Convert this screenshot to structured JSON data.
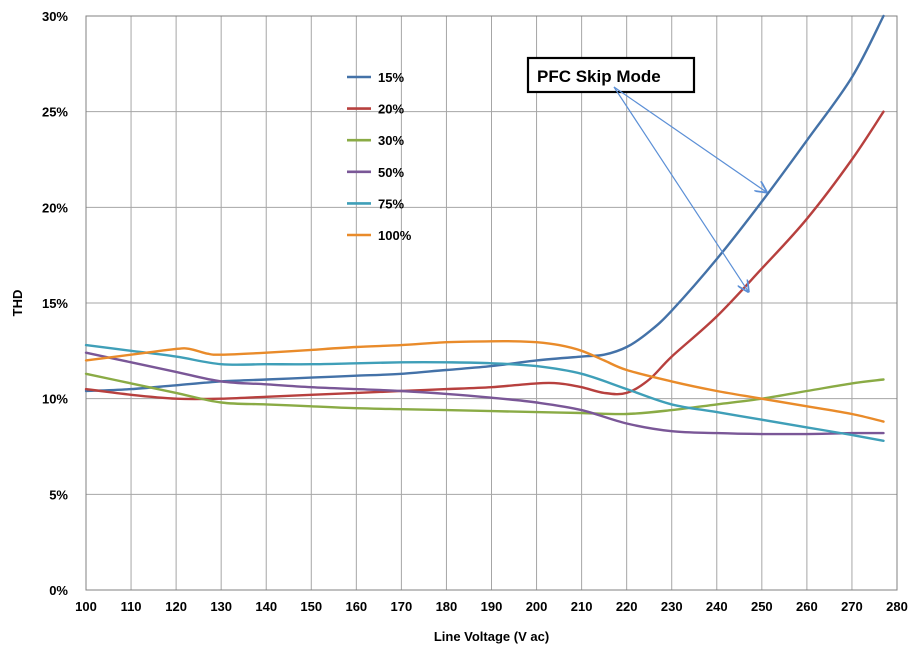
{
  "chart_data": {
    "type": "line",
    "xlabel": "Line Voltage (V ac)",
    "ylabel": "THD",
    "xlim": [
      100,
      280
    ],
    "ylim": [
      0,
      30
    ],
    "x_ticks": [
      100,
      110,
      120,
      130,
      140,
      150,
      160,
      170,
      180,
      190,
      200,
      210,
      220,
      230,
      240,
      250,
      260,
      270,
      280
    ],
    "y_ticks": [
      0,
      5,
      10,
      15,
      20,
      25,
      30
    ],
    "y_tick_labels": [
      "0%",
      "5%",
      "10%",
      "15%",
      "20%",
      "25%",
      "30%"
    ],
    "grid": true,
    "legend_position": "upper-center",
    "series": [
      {
        "name": "15%",
        "color": "#4472a8",
        "x": [
          100,
          110,
          120,
          130,
          140,
          150,
          160,
          170,
          180,
          190,
          200,
          210,
          215,
          220,
          225,
          230,
          240,
          250,
          260,
          270,
          277
        ],
        "y": [
          10.4,
          10.5,
          10.7,
          10.9,
          11.0,
          11.1,
          11.2,
          11.3,
          11.5,
          11.7,
          12.0,
          12.2,
          12.3,
          12.7,
          13.5,
          14.6,
          17.3,
          20.3,
          23.5,
          26.8,
          30.0
        ]
      },
      {
        "name": "20%",
        "color": "#b7403e",
        "x": [
          100,
          110,
          120,
          130,
          140,
          150,
          160,
          170,
          180,
          190,
          200,
          205,
          210,
          215,
          220,
          225,
          230,
          240,
          250,
          260,
          270,
          277
        ],
        "y": [
          10.5,
          10.2,
          10.0,
          10.0,
          10.1,
          10.2,
          10.3,
          10.4,
          10.5,
          10.6,
          10.8,
          10.8,
          10.6,
          10.3,
          10.3,
          11.0,
          12.2,
          14.3,
          16.8,
          19.4,
          22.5,
          25.0
        ]
      },
      {
        "name": "30%",
        "color": "#8aab45",
        "x": [
          100,
          110,
          120,
          130,
          140,
          150,
          160,
          170,
          180,
          190,
          200,
          210,
          220,
          230,
          240,
          250,
          260,
          270,
          277
        ],
        "y": [
          11.3,
          10.8,
          10.3,
          9.8,
          9.7,
          9.6,
          9.5,
          9.45,
          9.4,
          9.35,
          9.3,
          9.25,
          9.2,
          9.4,
          9.7,
          10.0,
          10.4,
          10.8,
          11.0
        ]
      },
      {
        "name": "50%",
        "color": "#7a5797",
        "x": [
          100,
          110,
          120,
          130,
          140,
          150,
          160,
          170,
          180,
          190,
          200,
          210,
          220,
          230,
          240,
          250,
          260,
          270,
          277
        ],
        "y": [
          12.4,
          11.9,
          11.4,
          10.9,
          10.75,
          10.6,
          10.5,
          10.4,
          10.25,
          10.05,
          9.8,
          9.4,
          8.7,
          8.3,
          8.2,
          8.15,
          8.15,
          8.2,
          8.2
        ]
      },
      {
        "name": "75%",
        "color": "#3f9fb8",
        "x": [
          100,
          110,
          120,
          130,
          140,
          150,
          160,
          170,
          180,
          190,
          200,
          210,
          220,
          230,
          240,
          250,
          260,
          270,
          277
        ],
        "y": [
          12.8,
          12.5,
          12.2,
          11.8,
          11.8,
          11.8,
          11.85,
          11.9,
          11.9,
          11.85,
          11.7,
          11.3,
          10.5,
          9.7,
          9.3,
          8.9,
          8.5,
          8.1,
          7.8
        ]
      },
      {
        "name": "100%",
        "color": "#e98b2a",
        "x": [
          100,
          110,
          120,
          123,
          127,
          130,
          140,
          150,
          160,
          170,
          180,
          190,
          195,
          200,
          205,
          210,
          215,
          220,
          230,
          240,
          250,
          260,
          270,
          277
        ],
        "y": [
          12.0,
          12.3,
          12.6,
          12.6,
          12.35,
          12.3,
          12.4,
          12.55,
          12.7,
          12.8,
          12.95,
          13.0,
          13.0,
          12.95,
          12.8,
          12.5,
          12.0,
          11.5,
          10.9,
          10.4,
          10.0,
          9.6,
          9.2,
          8.8
        ]
      }
    ],
    "annotations": [
      {
        "text": "PFC Skip Mode",
        "arrows_to": [
          [
            251,
            20.8
          ],
          [
            247,
            15.6
          ]
        ]
      }
    ]
  }
}
